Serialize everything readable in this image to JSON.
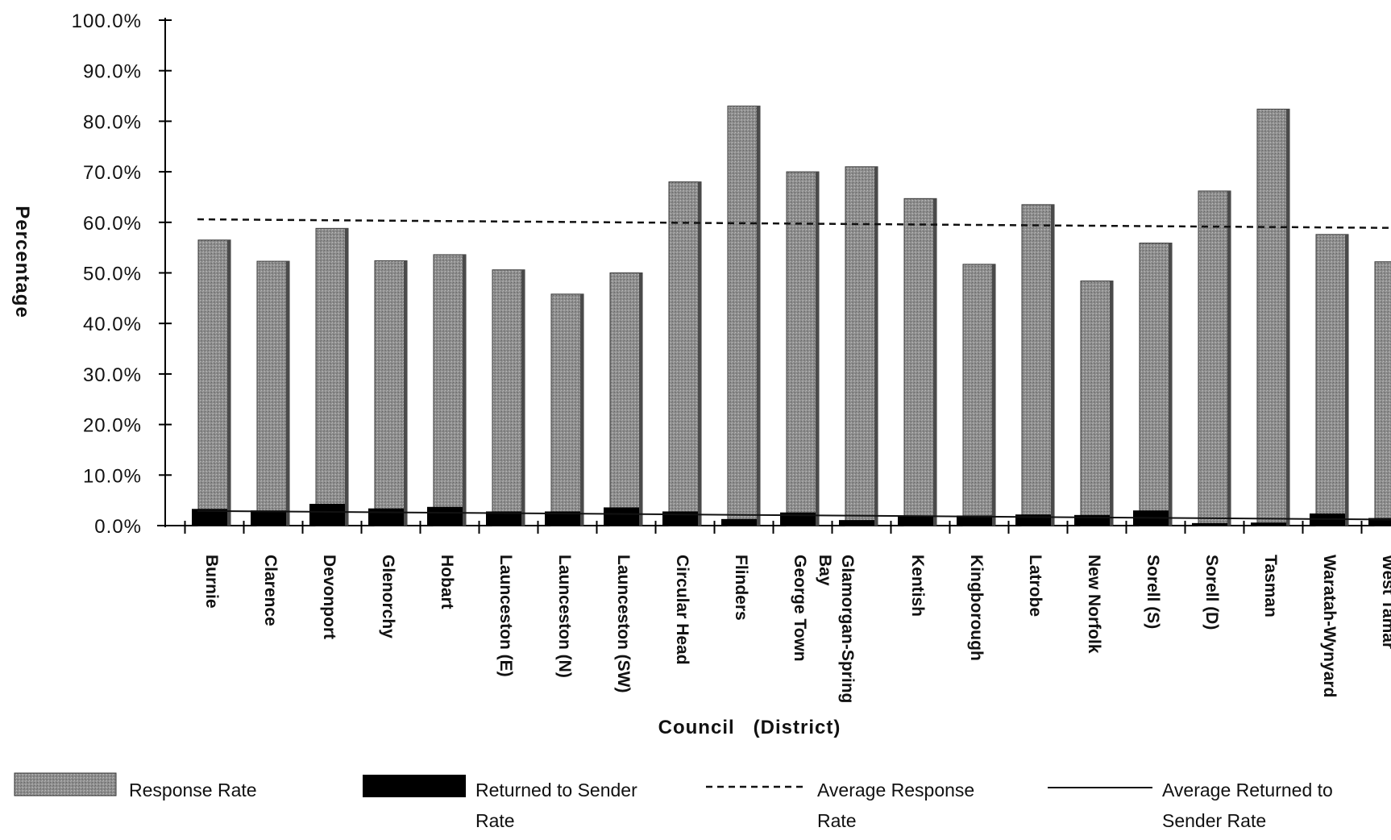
{
  "chart_data": {
    "type": "bar",
    "title": "",
    "xlabel": "Council   (District)",
    "ylabel": "Percentage",
    "ylim": [
      0,
      100
    ],
    "yticks": [
      "0.0%",
      "10.0%",
      "20.0%",
      "30.0%",
      "40.0%",
      "50.0%",
      "60.0%",
      "70.0%",
      "80.0%",
      "90.0%",
      "100.0%"
    ],
    "grid": false,
    "legend_position": "bottom",
    "categories": [
      "Burnie",
      "Clarence",
      "Devonport",
      "Glenorchy",
      "Hobart",
      "Launceston (E)",
      "Launceston (N)",
      "Launceston (SW)",
      "Circular Head",
      "Flinders",
      "George Town",
      "Glamorgan-Spring Bay",
      "Kentish",
      "Kingborough",
      "Latrobe",
      "New Norfolk",
      "Sorell (S)",
      "Sorell (D)",
      "Tasman",
      "Waratah-Wynyard",
      "West Tamar"
    ],
    "series": [
      {
        "name": "Response Rate",
        "type": "bar",
        "color": "#9a9a9a",
        "values": [
          56.5,
          52.3,
          58.8,
          52.4,
          53.6,
          50.6,
          45.8,
          50.0,
          68.0,
          83.0,
          70.0,
          71.0,
          64.7,
          51.7,
          63.5,
          48.4,
          55.9,
          66.2,
          82.4,
          57.6,
          52.2
        ]
      },
      {
        "name": "Returned to Sender Rate",
        "type": "bar",
        "color": "#000000",
        "values": [
          3.3,
          3.0,
          4.3,
          3.4,
          3.7,
          2.8,
          2.8,
          3.6,
          2.8,
          1.3,
          2.6,
          1.1,
          2.0,
          2.0,
          2.2,
          2.1,
          3.0,
          0.5,
          0.6,
          2.4,
          1.5
        ]
      },
      {
        "name": "Average Response Rate",
        "type": "line",
        "style": "dashed",
        "start": 60.6,
        "end": 58.9
      },
      {
        "name": "Average Returned to Sender Rate",
        "type": "line",
        "style": "solid",
        "start": 2.9,
        "end": 1.2
      }
    ]
  },
  "legend": [
    {
      "kind": "bar-gray",
      "lines": [
        "Response Rate"
      ]
    },
    {
      "kind": "bar-black",
      "lines": [
        "Returned to Sender",
        "Rate"
      ]
    },
    {
      "kind": "dashed-line",
      "lines": [
        "Average Response",
        "Rate"
      ]
    },
    {
      "kind": "solid-line",
      "lines": [
        "Average Returned to",
        "Sender Rate"
      ]
    }
  ]
}
